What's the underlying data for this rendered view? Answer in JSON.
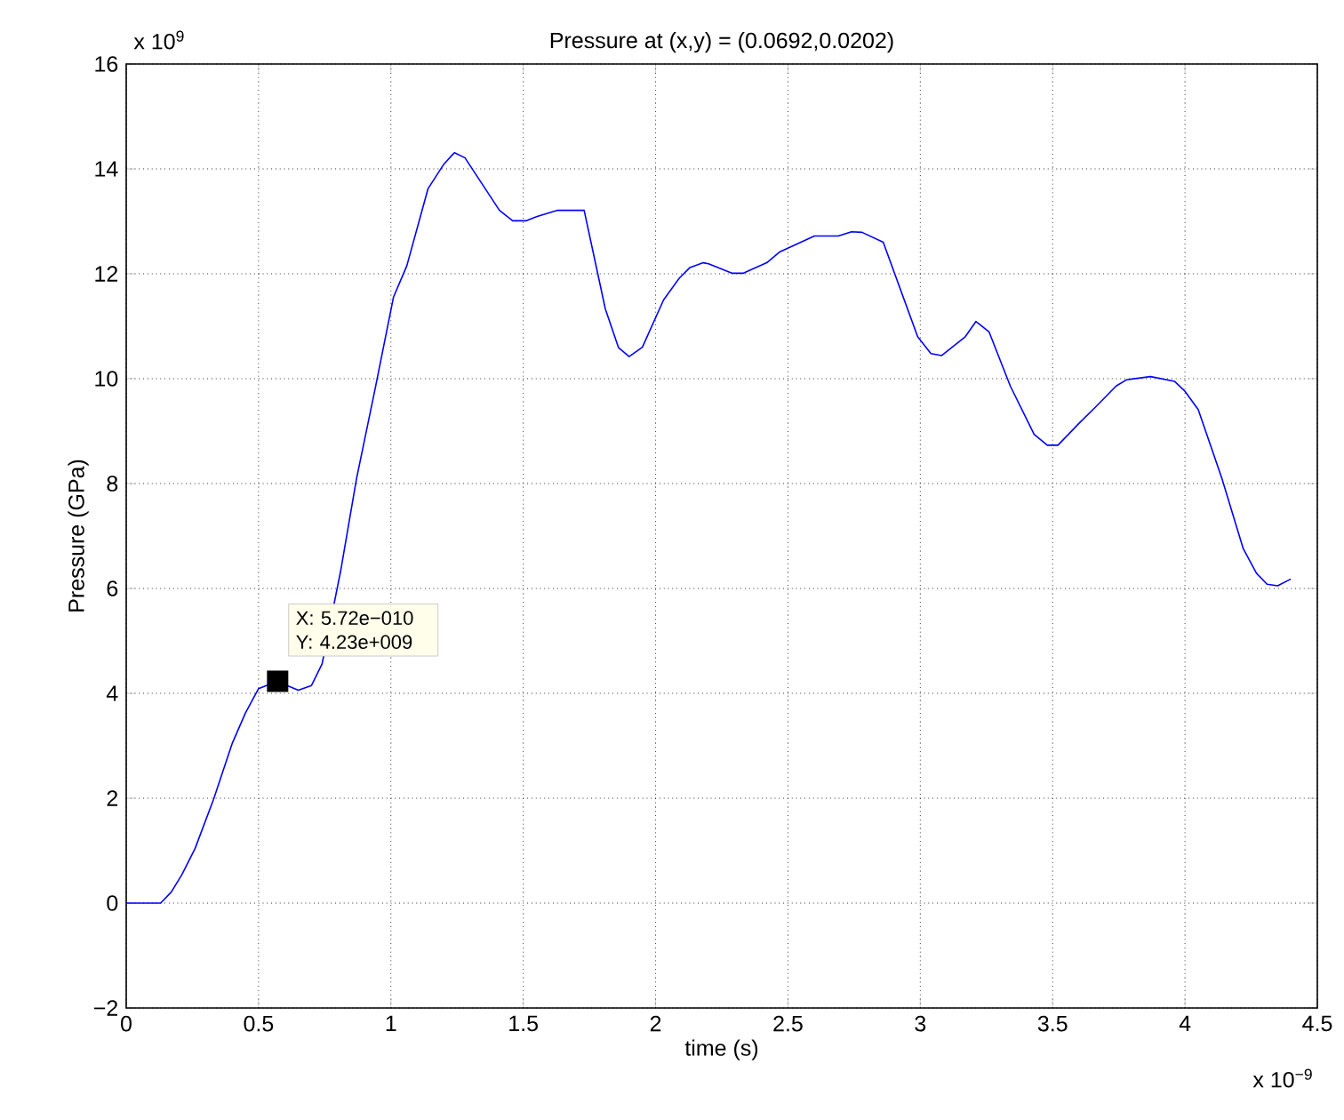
{
  "chart_data": {
    "type": "line",
    "title": "Pressure at (x,y) = (0.0692,0.0202)",
    "xlabel": "time (s)",
    "ylabel": "Pressure (GPa)",
    "x": [
      0,
      0.13,
      0.17,
      0.21,
      0.26,
      0.33,
      0.4,
      0.45,
      0.5,
      0.57,
      0.65,
      0.7,
      0.74,
      0.81,
      0.87,
      0.94,
      1.01,
      1.06,
      1.14,
      1.2,
      1.24,
      1.28,
      1.41,
      1.46,
      1.51,
      1.55,
      1.63,
      1.73,
      1.81,
      1.86,
      1.9,
      1.95,
      2.03,
      2.09,
      2.13,
      2.18,
      2.2,
      2.29,
      2.33,
      2.42,
      2.47,
      2.6,
      2.69,
      2.74,
      2.78,
      2.86,
      2.99,
      3.04,
      3.08,
      3.17,
      3.21,
      3.26,
      3.34,
      3.43,
      3.48,
      3.52,
      3.6,
      3.66,
      3.74,
      3.78,
      3.87,
      3.96,
      4.0,
      4.05,
      4.14,
      4.22,
      4.27,
      4.31,
      4.35,
      4.4
    ],
    "series": [
      {
        "color": "#0000ff",
        "values": [
          0,
          0,
          0.21,
          0.54,
          1.04,
          1.98,
          3.04,
          3.62,
          4.09,
          4.23,
          4.06,
          4.15,
          4.56,
          6.33,
          8.09,
          9.8,
          11.56,
          12.15,
          13.62,
          14.09,
          14.31,
          14.21,
          13.21,
          13.01,
          13.01,
          13.09,
          13.21,
          13.21,
          11.33,
          10.59,
          10.42,
          10.6,
          11.5,
          11.92,
          12.12,
          12.21,
          12.19,
          12.01,
          12.01,
          12.21,
          12.42,
          12.72,
          12.72,
          12.8,
          12.79,
          12.6,
          10.8,
          10.48,
          10.44,
          10.8,
          11.09,
          10.89,
          9.86,
          8.94,
          8.73,
          8.73,
          9.15,
          9.45,
          9.86,
          9.98,
          10.04,
          9.95,
          9.76,
          9.41,
          8.09,
          6.76,
          6.29,
          6.08,
          6.05,
          6.18
        ]
      }
    ],
    "xlim": [
      0,
      4.5
    ],
    "ylim": [
      -2,
      16
    ],
    "xticks": [
      0,
      0.5,
      1,
      1.5,
      2,
      2.5,
      3,
      3.5,
      4,
      4.5
    ],
    "yticks": [
      {
        "value": -2,
        "label": "−2"
      },
      0,
      2,
      4,
      6,
      8,
      10,
      12,
      14,
      16
    ],
    "grid": true,
    "marker": "none",
    "line_style": "solid",
    "annotations": [
      "x 10$^{9}$",
      "x 10$^{−9}$",
      {
        "text": "X: 5.72e−010 Y: 4.23e+009",
        "x": 0.572,
        "y": 4.23
      }
    ]
  }
}
